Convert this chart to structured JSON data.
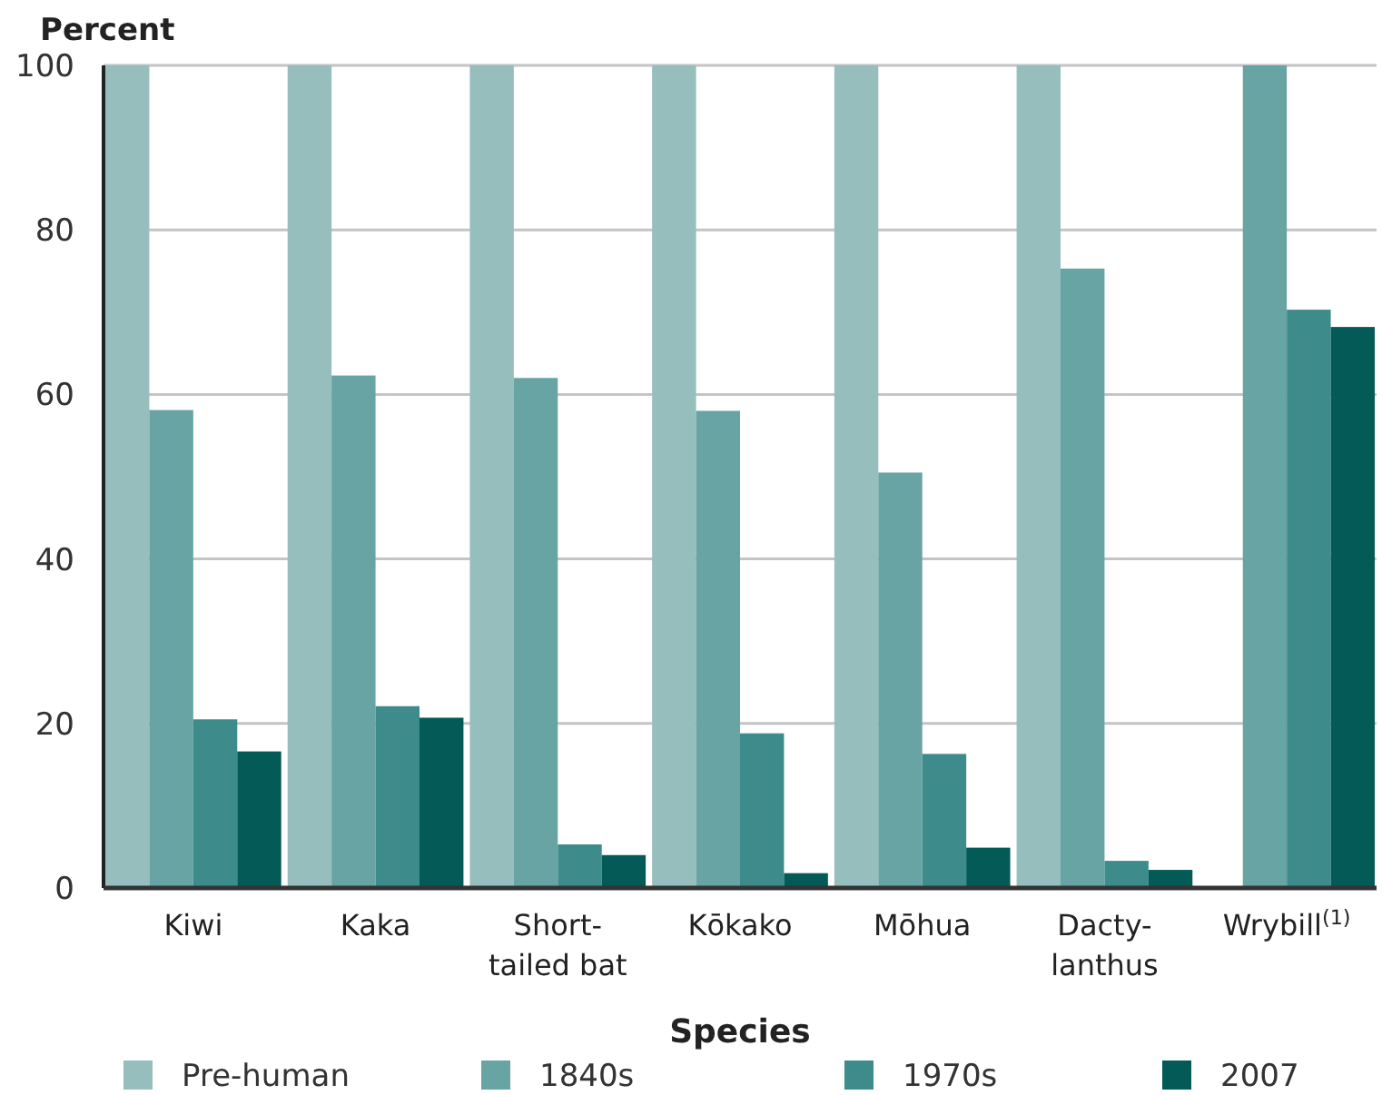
{
  "chart_data": {
    "type": "bar",
    "xlabel": "Species",
    "ylabel": "Percent",
    "categories": [
      "Kiwi",
      "Kaka",
      "Short-\ntailed bat",
      "Kōkako",
      "Mōhua",
      "Dacty-\nlanthus",
      "Wrybill$^{(1)}$"
    ],
    "series": [
      {
        "name": "Pre-human",
        "color": "#95bebd",
        "values": [
          100,
          100,
          100,
          100,
          100,
          100,
          null
        ]
      },
      {
        "name": "1840s",
        "color": "#68a4a4",
        "values": [
          58.1,
          62.3,
          62,
          58,
          50.5,
          75.3,
          100
        ]
      },
      {
        "name": "1970s",
        "color": "#3e8b8b",
        "values": [
          20.5,
          22.1,
          5.3,
          18.8,
          16.3,
          3.3,
          70.3
        ]
      },
      {
        "name": "2007",
        "color": "#035a56",
        "values": [
          16.6,
          20.7,
          4,
          1.8,
          4.9,
          2.2,
          68.2
        ]
      }
    ],
    "ylim": [
      0,
      100
    ],
    "yticks": [
      0,
      20,
      40,
      60,
      80,
      100
    ],
    "grid": "y",
    "legend": "bottom"
  }
}
